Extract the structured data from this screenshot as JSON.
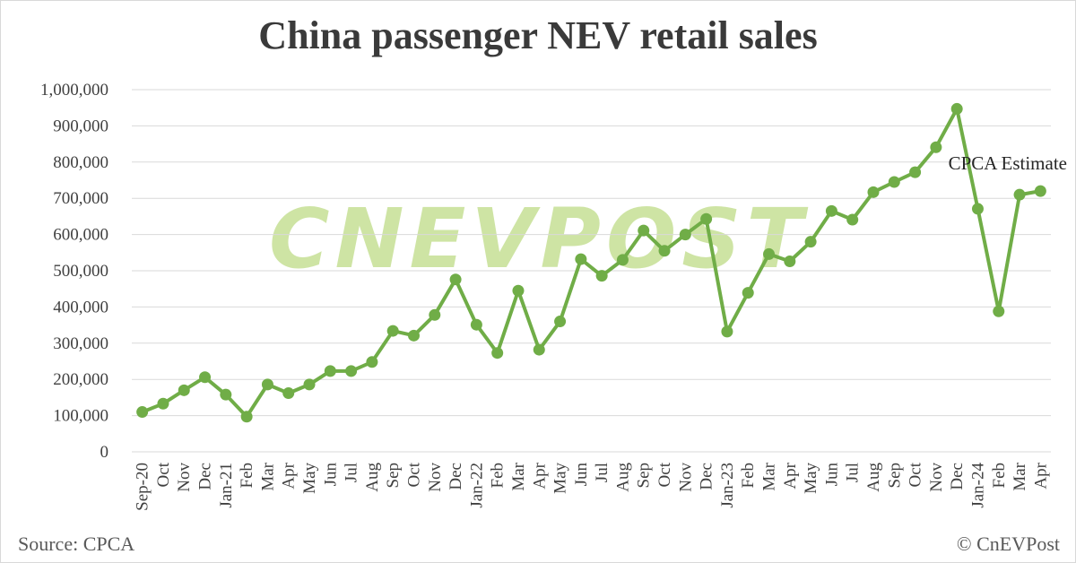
{
  "title": "China passenger NEV retail sales",
  "source": "Source: CPCA",
  "copyright": "© CnEVPost",
  "watermark": "CNEVPOST",
  "colors": {
    "line": "#70ad47",
    "grid": "#d9d9d9",
    "watermark": "#a5cd5a",
    "text": "#404040"
  },
  "chart_data": {
    "type": "line",
    "title": "China passenger NEV retail sales",
    "xlabel": "",
    "ylabel": "",
    "ylim": [
      0,
      1000000
    ],
    "yticks": [
      0,
      100000,
      200000,
      300000,
      400000,
      500000,
      600000,
      700000,
      800000,
      900000,
      1000000
    ],
    "ytick_labels": [
      "0",
      "100,000",
      "200,000",
      "300,000",
      "400,000",
      "500,000",
      "600,000",
      "700,000",
      "800,000",
      "900,000",
      "1,000,000"
    ],
    "grid": "horizontal",
    "legend": "none",
    "categories": [
      "Sep-20",
      "Oct",
      "Nov",
      "Dec",
      "Jan-21",
      "Feb",
      "Mar",
      "Apr",
      "May",
      "Jun",
      "Jul",
      "Aug",
      "Sep",
      "Oct",
      "Nov",
      "Dec",
      "Jan-22",
      "Feb",
      "Mar",
      "Apr",
      "May",
      "Jun",
      "Jul",
      "Aug",
      "Sep",
      "Oct",
      "Nov",
      "Dec",
      "Jan-23",
      "Feb",
      "Mar",
      "Apr",
      "May",
      "Jun",
      "Jul",
      "Aug",
      "Sep",
      "Oct",
      "Nov",
      "Dec",
      "Jan-24",
      "Feb",
      "Mar",
      "Apr"
    ],
    "series": [
      {
        "values": [
          110000,
          133000,
          170000,
          206000,
          158000,
          97000,
          186000,
          162000,
          186000,
          223000,
          223000,
          248000,
          334000,
          321000,
          378000,
          476000,
          351000,
          273000,
          445000,
          282000,
          360000,
          532000,
          486000,
          530000,
          611000,
          555000,
          600000,
          643000,
          332000,
          439000,
          546000,
          526000,
          580000,
          665000,
          641000,
          717000,
          745000,
          772000,
          841000,
          947000,
          671000,
          388000,
          710000,
          720000
        ]
      }
    ],
    "annotations": [
      {
        "text": "CPCA Estimate",
        "category": "Apr",
        "note_for": "last point"
      }
    ]
  }
}
